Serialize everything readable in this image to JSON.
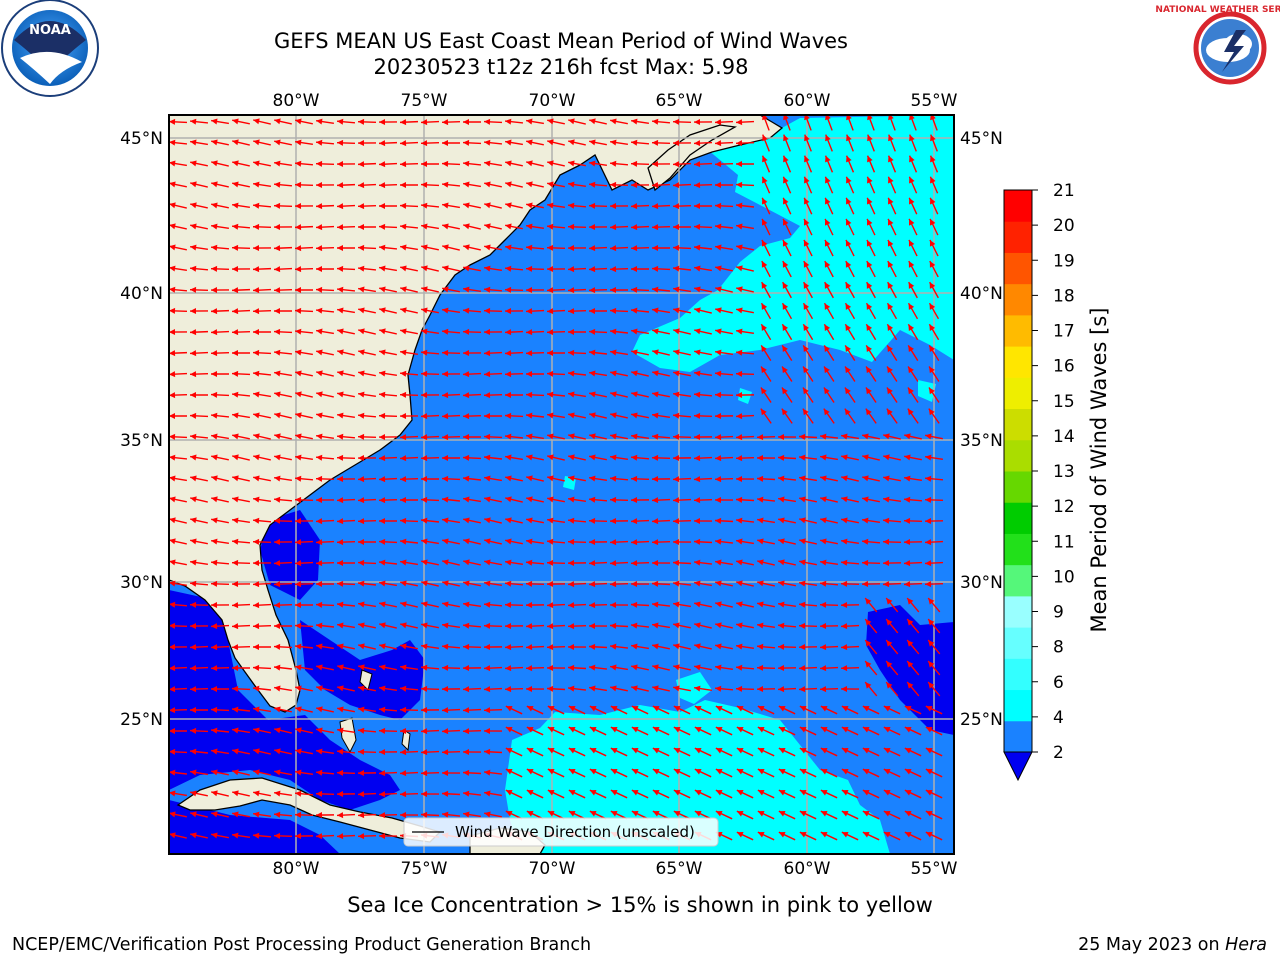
{
  "header": {
    "title_line1": "GEFS MEAN US East Coast Mean Period of Wind Waves",
    "title_line2": "20230523 t12z 216h fcst   Max: 5.98"
  },
  "logos": {
    "left": "NOAA",
    "right": "NATIONAL WEATHER SERVICE"
  },
  "map": {
    "lon_ticks": [
      "80°W",
      "75°W",
      "70°W",
      "65°W",
      "60°W",
      "55°W"
    ],
    "lat_ticks": [
      "45°N",
      "40°N",
      "35°N",
      "30°N",
      "25°N"
    ],
    "legend_label": "Wind Wave Direction (unscaled)",
    "colors": {
      "land": "#efeedb",
      "ocean_2_4": "#1a82ff",
      "ocean_lt2": "#0000f0",
      "ocean_4_6": "#00ffff",
      "arrow": "#ff0000",
      "grid": "#b0b0b0"
    }
  },
  "colorbar": {
    "label": "Mean Period of Wind Waves [s]",
    "ticks": [
      "2",
      "4",
      "6",
      "8",
      "9",
      "10",
      "11",
      "12",
      "13",
      "14",
      "15",
      "16",
      "17",
      "18",
      "19",
      "20",
      "21"
    ],
    "colors": [
      "#1a82ff",
      "#00ffff",
      "#33ffff",
      "#66ffff",
      "#99ffff",
      "#55f77a",
      "#22e01a",
      "#00cc00",
      "#66d800",
      "#aadd00",
      "#ccdd00",
      "#eeee00",
      "#ffe600",
      "#ffbb00",
      "#ff8800",
      "#ff5500",
      "#ff2200",
      "#ff0000"
    ],
    "under_color": "#0000f0"
  },
  "footer": {
    "note": "Sea Ice Concentration > 15% is shown in pink to yellow",
    "credit": "NCEP/EMC/Verification Post Processing Product Generation Branch",
    "date": "25 May 2023 on ",
    "machine": "Hera"
  }
}
